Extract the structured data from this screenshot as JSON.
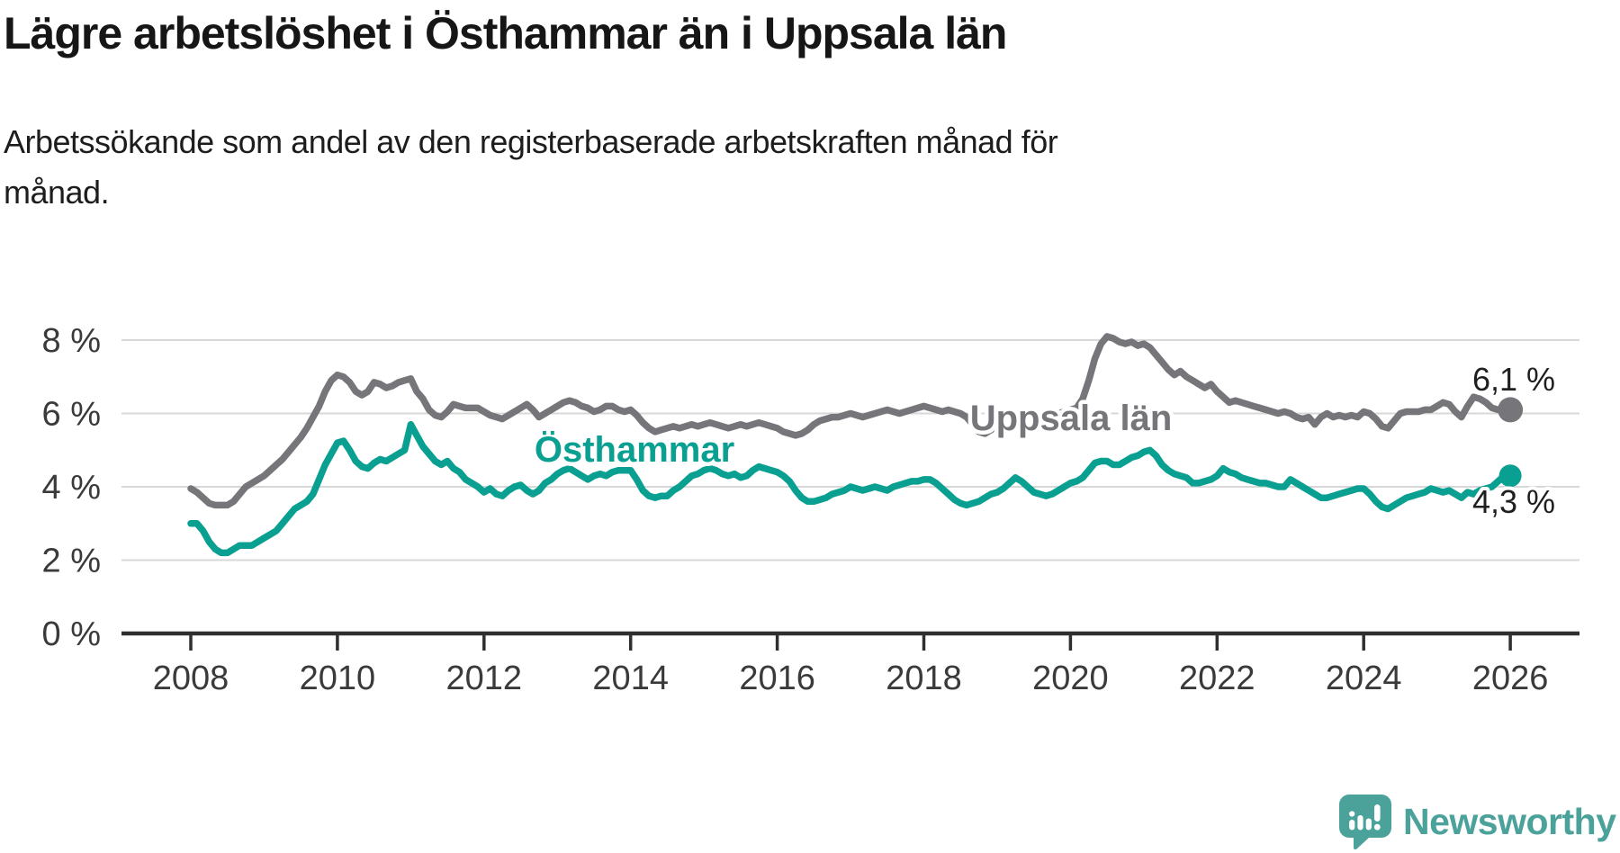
{
  "header": {
    "title": "Lägre arbetslöshet i Östhammar än i Uppsala län",
    "subtitle_lines": [
      "Arbetssökande som andel av den registerbaserade arbetskraften månad för",
      "månad."
    ]
  },
  "chart_data": {
    "type": "line",
    "title": "Lägre arbetslöshet i Östhammar än i Uppsala län",
    "ylabel": "",
    "xlabel": "",
    "unit": "%",
    "grid": "horizontal",
    "legend_position": "inline-labels",
    "x_start_year": 2008,
    "x_step_months": 1,
    "x_ticks": [
      2008,
      2010,
      2012,
      2014,
      2016,
      2018,
      2020,
      2022,
      2024,
      2026
    ],
    "y_ticks": [
      {
        "value": 0,
        "label": "0 %"
      },
      {
        "value": 2,
        "label": "2 %"
      },
      {
        "value": 4,
        "label": "4 %"
      },
      {
        "value": 6,
        "label": "6 %"
      },
      {
        "value": 8,
        "label": "8 %"
      }
    ],
    "ylim": [
      0,
      8.6
    ],
    "axis_color": "#2f2f2f",
    "grid_color": "#d8d8d8",
    "tick_label_color": "#3a3a3a",
    "value_label_color": "#1f1f1f",
    "series": [
      {
        "name": "Uppsala län",
        "color": "#75757a",
        "end_label": "6,1 %",
        "last_value": 6.1,
        "values": [
          3.95,
          3.85,
          3.7,
          3.55,
          3.5,
          3.5,
          3.5,
          3.6,
          3.8,
          4.0,
          4.1,
          4.2,
          4.3,
          4.45,
          4.6,
          4.75,
          4.95,
          5.15,
          5.35,
          5.6,
          5.9,
          6.2,
          6.6,
          6.9,
          7.05,
          7.0,
          6.85,
          6.6,
          6.5,
          6.6,
          6.85,
          6.8,
          6.7,
          6.75,
          6.85,
          6.9,
          6.95,
          6.6,
          6.4,
          6.1,
          5.95,
          5.9,
          6.05,
          6.25,
          6.2,
          6.15,
          6.15,
          6.15,
          6.05,
          5.95,
          5.9,
          5.85,
          5.95,
          6.05,
          6.15,
          6.25,
          6.1,
          5.9,
          6.0,
          6.1,
          6.2,
          6.3,
          6.35,
          6.3,
          6.2,
          6.15,
          6.05,
          6.1,
          6.2,
          6.2,
          6.1,
          6.05,
          6.1,
          5.95,
          5.75,
          5.6,
          5.5,
          5.55,
          5.6,
          5.65,
          5.6,
          5.65,
          5.7,
          5.65,
          5.7,
          5.75,
          5.7,
          5.65,
          5.6,
          5.65,
          5.7,
          5.65,
          5.7,
          5.75,
          5.7,
          5.65,
          5.6,
          5.5,
          5.45,
          5.4,
          5.45,
          5.55,
          5.7,
          5.8,
          5.85,
          5.9,
          5.9,
          5.95,
          6.0,
          5.95,
          5.9,
          5.95,
          6.0,
          6.05,
          6.1,
          6.05,
          6.0,
          6.05,
          6.1,
          6.15,
          6.2,
          6.15,
          6.1,
          6.05,
          6.1,
          6.05,
          6.0,
          5.9,
          5.7,
          5.5,
          5.45,
          5.55,
          5.85,
          5.9,
          5.85,
          5.8,
          5.85,
          5.95,
          6.0,
          5.95,
          5.95,
          6.0,
          6.0,
          6.05,
          6.1,
          6.15,
          6.4,
          6.9,
          7.5,
          7.9,
          8.1,
          8.05,
          7.95,
          7.9,
          7.95,
          7.85,
          7.9,
          7.8,
          7.6,
          7.4,
          7.2,
          7.05,
          7.15,
          7.0,
          6.9,
          6.8,
          6.7,
          6.8,
          6.6,
          6.45,
          6.3,
          6.35,
          6.3,
          6.25,
          6.2,
          6.15,
          6.1,
          6.05,
          6.0,
          6.05,
          6.0,
          5.9,
          5.85,
          5.9,
          5.7,
          5.9,
          6.0,
          5.9,
          5.95,
          5.9,
          5.95,
          5.9,
          6.05,
          6.0,
          5.85,
          5.65,
          5.6,
          5.8,
          6.0,
          6.05,
          6.05,
          6.05,
          6.1,
          6.1,
          6.2,
          6.3,
          6.25,
          6.05,
          5.9,
          6.2,
          6.45,
          6.4,
          6.3,
          6.15,
          6.1,
          6.1,
          6.1
        ]
      },
      {
        "name": "Östhammar",
        "color": "#0aa091",
        "end_label": "4,3 %",
        "last_value": 4.3,
        "values": [
          3.0,
          3.0,
          2.8,
          2.5,
          2.3,
          2.2,
          2.2,
          2.3,
          2.4,
          2.4,
          2.4,
          2.5,
          2.6,
          2.7,
          2.8,
          3.0,
          3.2,
          3.4,
          3.5,
          3.6,
          3.8,
          4.2,
          4.6,
          4.9,
          5.2,
          5.25,
          5.0,
          4.7,
          4.55,
          4.5,
          4.65,
          4.75,
          4.7,
          4.8,
          4.9,
          5.0,
          5.7,
          5.4,
          5.1,
          4.9,
          4.7,
          4.6,
          4.7,
          4.5,
          4.4,
          4.2,
          4.1,
          4.0,
          3.85,
          3.95,
          3.8,
          3.75,
          3.9,
          4.0,
          4.05,
          3.9,
          3.8,
          3.9,
          4.1,
          4.2,
          4.35,
          4.45,
          4.5,
          4.4,
          4.3,
          4.2,
          4.3,
          4.35,
          4.3,
          4.4,
          4.45,
          4.45,
          4.45,
          4.2,
          3.9,
          3.75,
          3.7,
          3.75,
          3.75,
          3.9,
          4.0,
          4.15,
          4.3,
          4.35,
          4.45,
          4.5,
          4.45,
          4.35,
          4.3,
          4.35,
          4.25,
          4.3,
          4.45,
          4.55,
          4.5,
          4.45,
          4.4,
          4.3,
          4.15,
          3.9,
          3.7,
          3.6,
          3.6,
          3.65,
          3.7,
          3.8,
          3.85,
          3.9,
          4.0,
          3.95,
          3.9,
          3.95,
          4.0,
          3.95,
          3.9,
          4.0,
          4.05,
          4.1,
          4.15,
          4.15,
          4.2,
          4.2,
          4.1,
          3.95,
          3.8,
          3.65,
          3.55,
          3.5,
          3.55,
          3.6,
          3.7,
          3.8,
          3.85,
          3.95,
          4.1,
          4.25,
          4.15,
          4.0,
          3.85,
          3.8,
          3.75,
          3.8,
          3.9,
          4.0,
          4.1,
          4.15,
          4.25,
          4.45,
          4.65,
          4.7,
          4.7,
          4.6,
          4.6,
          4.7,
          4.8,
          4.85,
          4.95,
          5.0,
          4.85,
          4.6,
          4.45,
          4.35,
          4.3,
          4.25,
          4.1,
          4.1,
          4.15,
          4.2,
          4.3,
          4.5,
          4.4,
          4.35,
          4.25,
          4.2,
          4.15,
          4.1,
          4.1,
          4.05,
          4.0,
          4.0,
          4.2,
          4.1,
          4.0,
          3.9,
          3.8,
          3.7,
          3.7,
          3.75,
          3.8,
          3.85,
          3.9,
          3.95,
          3.95,
          3.8,
          3.6,
          3.45,
          3.4,
          3.5,
          3.6,
          3.7,
          3.75,
          3.8,
          3.85,
          3.95,
          3.9,
          3.85,
          3.9,
          3.8,
          3.7,
          3.85,
          3.8,
          3.9,
          3.95,
          4.0,
          4.15,
          4.3,
          4.3
        ]
      }
    ]
  },
  "logo": {
    "text": "Newsworthy",
    "color": "#4BA29B",
    "icon": "newsworthy-speech-bubble-barchart-icon"
  }
}
